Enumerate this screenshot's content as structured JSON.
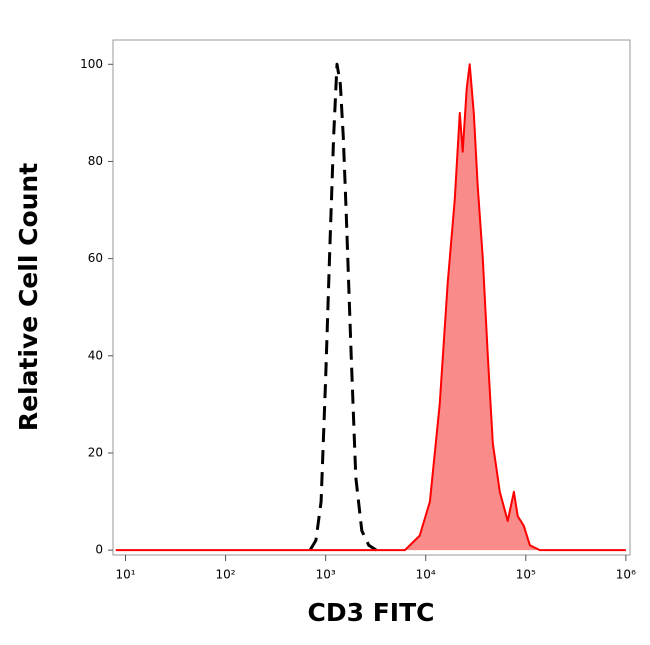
{
  "chart_data": {
    "type": "area",
    "x_label": "CD3 FITC",
    "y_label": "Relative Cell Count",
    "xscale": "log",
    "xlim": [
      7.5,
      1100000
    ],
    "ylim": [
      -1,
      105
    ],
    "xticks": [
      {
        "value": 10,
        "label": "10¹"
      },
      {
        "value": 100,
        "label": "10²"
      },
      {
        "value": 1000,
        "label": "10³"
      },
      {
        "value": 10000,
        "label": "10⁴"
      },
      {
        "value": 100000,
        "label": "10⁵"
      },
      {
        "value": 1000000,
        "label": "10⁶"
      }
    ],
    "yticks": [
      0,
      20,
      40,
      60,
      80,
      100
    ],
    "series": [
      {
        "color": "#000000",
        "dashed": true,
        "filled": false,
        "x": [
          700,
          800,
          900,
          1000,
          1100,
          1200,
          1300,
          1400,
          1500,
          1600,
          1800,
          2000,
          2300,
          2700,
          3200
        ],
        "values": [
          0,
          2,
          10,
          35,
          62,
          85,
          100,
          96,
          85,
          70,
          40,
          15,
          4,
          1,
          0
        ]
      },
      {
        "color": "#ff0000",
        "fill": "#f98b8b",
        "dashed": false,
        "filled": true,
        "x": [
          8,
          6200,
          8700,
          11000,
          13800,
          16600,
          19500,
          21900,
          23400,
          25700,
          27500,
          30200,
          33100,
          37200,
          41700,
          46800,
          55000,
          66000,
          76000,
          83000,
          95500,
          110000,
          138000,
          1000000
        ],
        "values": [
          0,
          0,
          3,
          10,
          30,
          55,
          72,
          90,
          82,
          95,
          100,
          90,
          75,
          60,
          40,
          22,
          12,
          6,
          12,
          7,
          5,
          1,
          0,
          0
        ]
      }
    ]
  }
}
